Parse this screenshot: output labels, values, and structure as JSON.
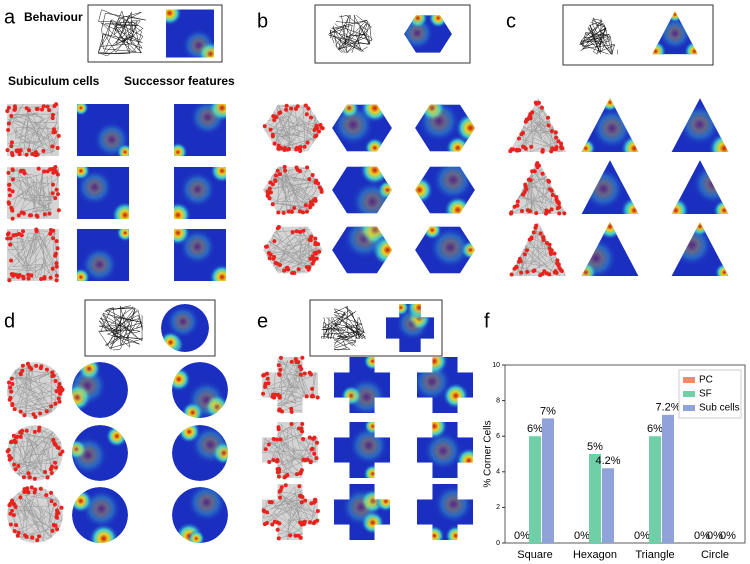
{
  "panels": {
    "a": {
      "label": "a",
      "behaviour": "Behaviour",
      "subiculum_cells": "Subiculum cells",
      "successor_features": "Successor features"
    },
    "b": {
      "label": "b"
    },
    "c": {
      "label": "c"
    },
    "d": {
      "label": "d"
    },
    "e": {
      "label": "e"
    },
    "f": {
      "label": "f"
    }
  },
  "chart_data": {
    "type": "bar",
    "y_label": "% Corner Cells",
    "categories": [
      "Square",
      "Hexagon",
      "Triangle",
      "Circle"
    ],
    "series": [
      {
        "name": "PC",
        "color": "#f08a6c",
        "values": [
          0,
          0,
          0,
          0
        ],
        "value_labels": [
          "0%",
          "0%",
          "0%",
          "0%"
        ]
      },
      {
        "name": "SF",
        "color": "#6fcfa6",
        "values": [
          6,
          5,
          6,
          0
        ],
        "value_labels": [
          "6%",
          "5%",
          "6%",
          "0%"
        ]
      },
      {
        "name": "Sub cells",
        "color": "#8fa2d9",
        "values": [
          7,
          4.2,
          7.2,
          0
        ],
        "value_labels": [
          "7%",
          "4.2%",
          "7.2%",
          "0%"
        ]
      }
    ],
    "ylim": [
      0,
      10
    ],
    "yticks": [
      0,
      2,
      4,
      6,
      8,
      10
    ],
    "legend": "upper right"
  }
}
